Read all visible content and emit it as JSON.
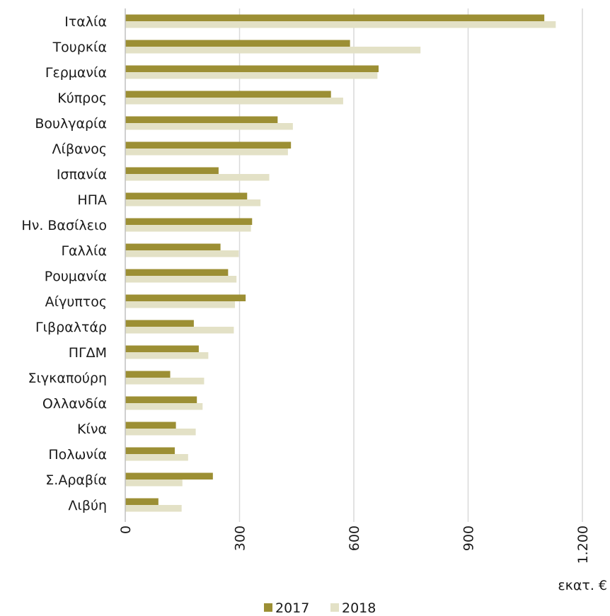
{
  "chart_data": {
    "type": "bar",
    "orientation": "horizontal",
    "categories": [
      "Ιταλία",
      "Τουρκία",
      "Γερμανία",
      "Κύπρος",
      "Βουλγαρία",
      "Λίβανος",
      "Ισπανία",
      "ΗΠΑ",
      "Ην. Βασίλειο",
      "Γαλλία",
      "Ρουμανία",
      "Αίγυπτος",
      "Γιβραλτάρ",
      "ΠΓΔΜ",
      "Σιγκαπούρη",
      "Ολλανδία",
      "Κίνα",
      "Πολωνία",
      "Σ.Αραβία",
      "Λιβύη"
    ],
    "series": [
      {
        "name": "2017",
        "color": "#9c8f34",
        "values": [
          1100,
          590,
          665,
          540,
          400,
          435,
          245,
          320,
          333,
          250,
          270,
          316,
          180,
          193,
          118,
          188,
          133,
          130,
          230,
          87
        ]
      },
      {
        "name": "2018",
        "color": "#e3e1c6",
        "values": [
          1130,
          775,
          662,
          572,
          440,
          427,
          378,
          355,
          330,
          298,
          292,
          288,
          285,
          218,
          207,
          203,
          185,
          165,
          150,
          148
        ]
      }
    ],
    "xlim": [
      0,
      1200
    ],
    "ticks": [
      "0",
      "300",
      "600",
      "900",
      "1.200"
    ],
    "tick_values": [
      0,
      300,
      600,
      900,
      1200
    ],
    "unit_label": "εκατ. €",
    "grid": true,
    "legend_position": "bottom"
  }
}
